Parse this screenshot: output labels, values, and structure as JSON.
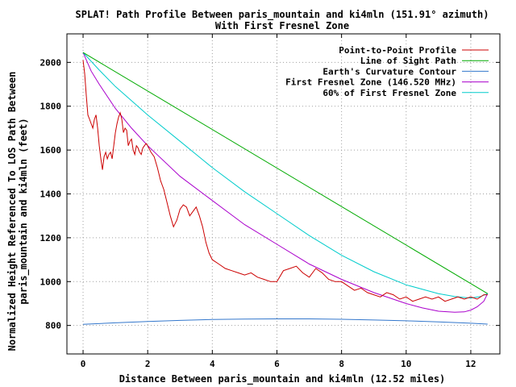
{
  "chart_data": {
    "type": "line",
    "title": "SPLAT! Path Profile Between paris_mountain and ki4mln (151.91° azimuth)",
    "subtitle": "With First Fresnel Zone",
    "xlabel": "Distance Between paris_mountain and ki4mln (12.52 miles)",
    "ylabel_lines": [
      "Normalized Height Referenced To LOS Path Between",
      "paris_mountain and ki4mln (feet)"
    ],
    "xlim": [
      -0.5,
      12.9
    ],
    "ylim": [
      670,
      2130
    ],
    "xticks": [
      0,
      2,
      4,
      6,
      8,
      10,
      12
    ],
    "yticks": [
      800,
      1000,
      1200,
      1400,
      1600,
      1800,
      2000
    ],
    "grid": true,
    "legend_position": "top-right",
    "series": [
      {
        "name": "Point-to-Point Profile",
        "color": "#cc0000",
        "x": [
          0,
          0.05,
          0.1,
          0.15,
          0.2,
          0.25,
          0.3,
          0.35,
          0.4,
          0.45,
          0.5,
          0.55,
          0.6,
          0.65,
          0.7,
          0.75,
          0.8,
          0.85,
          0.9,
          0.95,
          1.0,
          1.05,
          1.1,
          1.15,
          1.2,
          1.25,
          1.3,
          1.35,
          1.4,
          1.45,
          1.5,
          1.55,
          1.6,
          1.65,
          1.7,
          1.75,
          1.8,
          1.85,
          1.9,
          1.95,
          2.0,
          2.1,
          2.2,
          2.3,
          2.4,
          2.5,
          2.6,
          2.7,
          2.8,
          2.9,
          3.0,
          3.1,
          3.2,
          3.3,
          3.4,
          3.5,
          3.6,
          3.7,
          3.8,
          3.9,
          4.0,
          4.2,
          4.4,
          4.6,
          4.8,
          5.0,
          5.2,
          5.4,
          5.6,
          5.8,
          6.0,
          6.2,
          6.4,
          6.6,
          6.8,
          7.0,
          7.2,
          7.4,
          7.6,
          7.8,
          8.0,
          8.2,
          8.4,
          8.6,
          8.8,
          9.0,
          9.2,
          9.4,
          9.6,
          9.8,
          10.0,
          10.2,
          10.4,
          10.6,
          10.8,
          11.0,
          11.2,
          11.4,
          11.6,
          11.8,
          12.0,
          12.2,
          12.4,
          12.52
        ],
        "y": [
          2010,
          1950,
          1850,
          1760,
          1740,
          1720,
          1700,
          1740,
          1760,
          1700,
          1620,
          1560,
          1510,
          1570,
          1590,
          1560,
          1580,
          1590,
          1560,
          1620,
          1680,
          1720,
          1750,
          1770,
          1740,
          1680,
          1700,
          1690,
          1620,
          1640,
          1650,
          1600,
          1580,
          1620,
          1610,
          1590,
          1580,
          1610,
          1620,
          1630,
          1620,
          1590,
          1570,
          1520,
          1460,
          1420,
          1360,
          1300,
          1250,
          1280,
          1330,
          1350,
          1340,
          1300,
          1320,
          1340,
          1300,
          1250,
          1180,
          1130,
          1100,
          1080,
          1060,
          1050,
          1040,
          1030,
          1040,
          1020,
          1010,
          1000,
          1000,
          1050,
          1060,
          1070,
          1040,
          1020,
          1060,
          1040,
          1010,
          1000,
          1000,
          980,
          960,
          970,
          950,
          940,
          930,
          950,
          940,
          920,
          930,
          910,
          920,
          930,
          920,
          930,
          910,
          920,
          930,
          920,
          930,
          920,
          940,
          940
        ]
      },
      {
        "name": "Line of Sight Path",
        "color": "#00aa00",
        "x": [
          0,
          12.52
        ],
        "y": [
          2045,
          945
        ]
      },
      {
        "name": "Earth's Curvature Contour",
        "color": "#3377cc",
        "x": [
          0,
          1,
          2,
          3,
          4,
          5,
          6,
          7,
          8,
          9,
          10,
          11,
          12,
          12.52
        ],
        "y": [
          805,
          812,
          818,
          823,
          827,
          829,
          830,
          830,
          828,
          825,
          821,
          816,
          810,
          806
        ]
      },
      {
        "name": "First Fresnel Zone (146.520 MHz)",
        "color": "#aa00cc",
        "x": [
          0,
          0.25,
          0.5,
          1,
          1.5,
          2,
          3,
          4,
          5,
          6,
          7,
          8,
          9,
          10,
          10.5,
          11,
          11.5,
          11.8,
          12.0,
          12.2,
          12.4,
          12.52
        ],
        "y": [
          2045,
          1960,
          1900,
          1790,
          1700,
          1620,
          1480,
          1370,
          1260,
          1170,
          1080,
          1010,
          950,
          900,
          880,
          865,
          860,
          862,
          870,
          885,
          910,
          945
        ]
      },
      {
        "name": "60% of First Fresnel Zone",
        "color": "#00cccc",
        "x": [
          0,
          0.5,
          1,
          2,
          3,
          4,
          5,
          6,
          7,
          8,
          9,
          10,
          11,
          11.5,
          12.0,
          12.3,
          12.52
        ],
        "y": [
          2045,
          1965,
          1890,
          1760,
          1640,
          1520,
          1410,
          1310,
          1210,
          1120,
          1045,
          985,
          945,
          932,
          925,
          932,
          945
        ]
      }
    ]
  }
}
